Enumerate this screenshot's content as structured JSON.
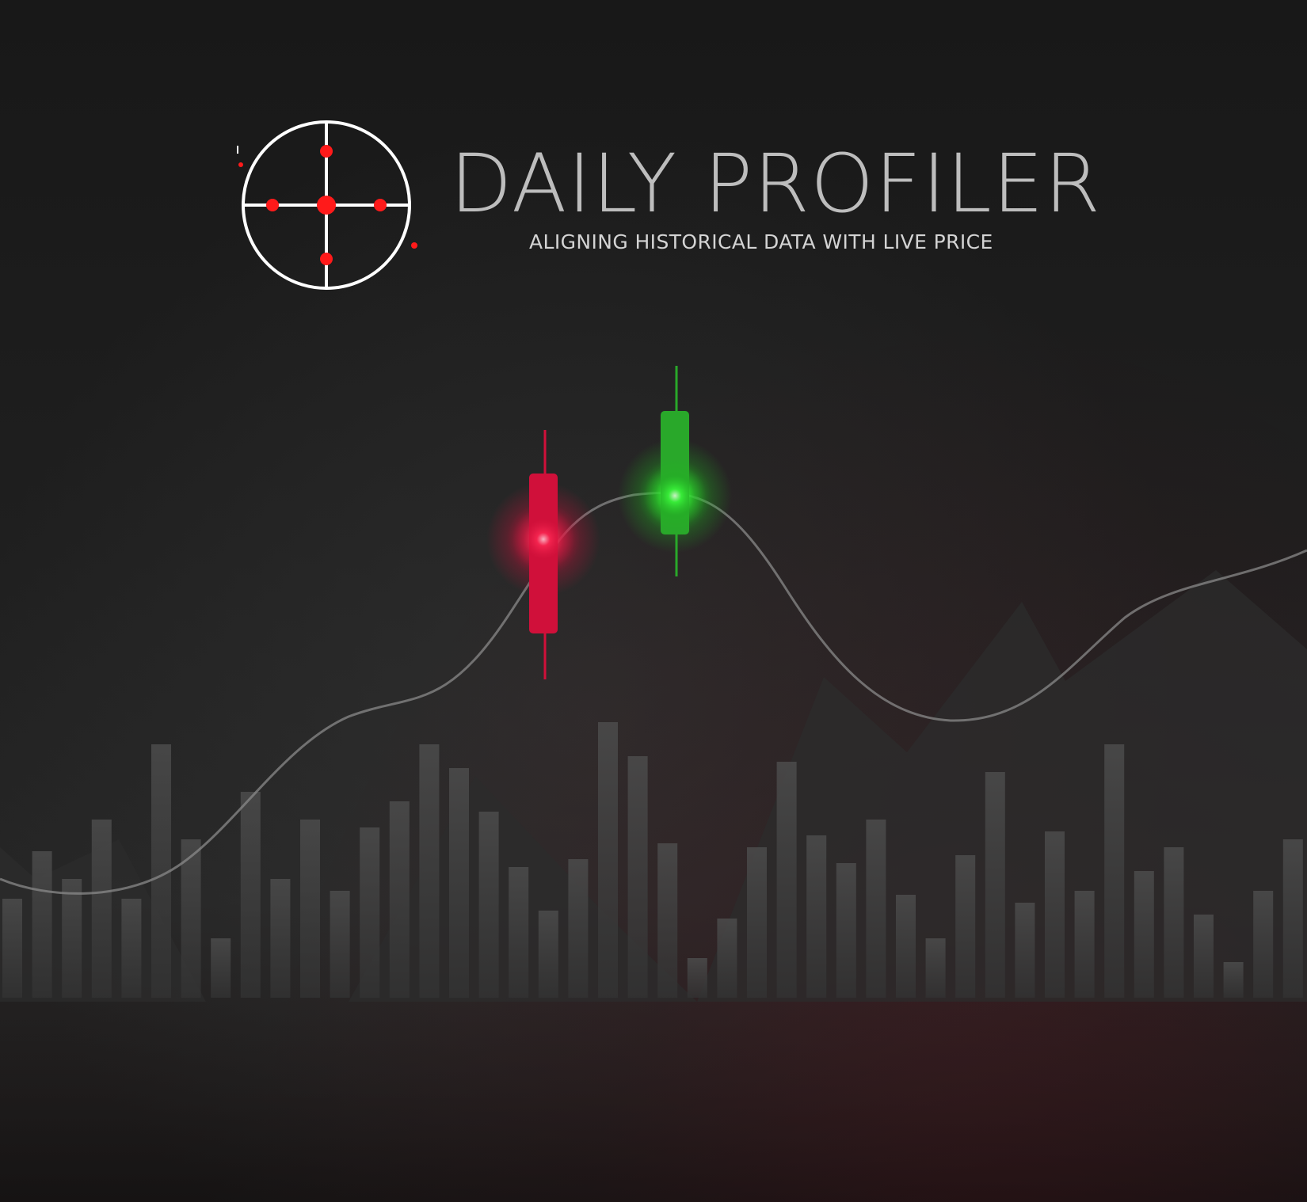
{
  "brand": {
    "title": "DAILY PROFILER",
    "tagline": "ALIGNING HISTORICAL DATA WITH LIVE PRICE"
  },
  "colors": {
    "background": "#1a1a1a",
    "title_text": "#bdbdbd",
    "logo_ring": "#ffffff",
    "logo_dots": "#ff1a1a",
    "bearish_candle": "#d0103a",
    "bullish_candle": "#29a82a",
    "price_curve": "#8a8a8a",
    "volume_bars": "#4a4a4a"
  },
  "icons": {
    "logo": "crosshair-target-icon"
  }
}
